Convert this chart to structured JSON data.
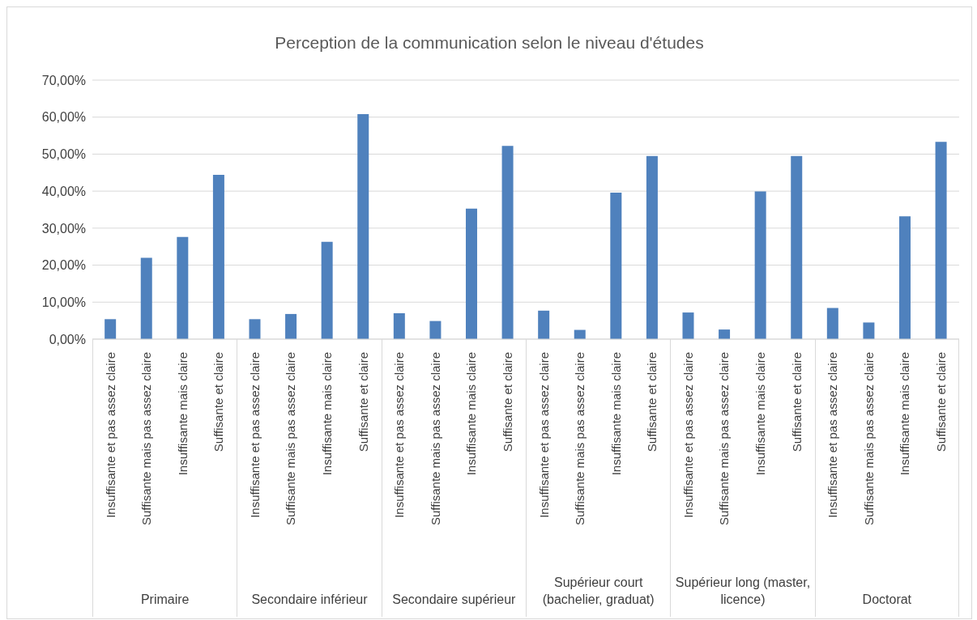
{
  "chart_data": {
    "type": "bar",
    "title": "Perception de la communication selon le niveau d'études",
    "categories": [
      "Insuffisante et pas assez claire",
      "Suffisante mais pas assez claire",
      "Insuffisante mais claire",
      "Suffisante et claire",
      "Insuffisante et pas assez claire",
      "Suffisante mais pas assez claire",
      "Insuffisante mais claire",
      "Suffisante et claire",
      "Insuffisante et pas assez claire",
      "Suffisante mais pas assez claire",
      "Insuffisante mais claire",
      "Suffisante et claire",
      "Insuffisante et pas assez claire",
      "Suffisante mais pas assez claire",
      "Insuffisante mais claire",
      "Suffisante et claire",
      "Insuffisante et pas assez claire",
      "Suffisante mais pas assez claire",
      "Insuffisante mais claire",
      "Suffisante et claire",
      "Insuffisante et pas assez claire",
      "Suffisante mais pas assez claire",
      "Insuffisante mais claire",
      "Suffisante et claire"
    ],
    "values": [
      5.4,
      22.0,
      27.6,
      44.4,
      5.4,
      6.8,
      26.3,
      60.8,
      7.0,
      4.9,
      35.3,
      52.2,
      7.7,
      2.5,
      39.6,
      49.5,
      7.2,
      2.6,
      39.9,
      49.5,
      8.4,
      4.5,
      33.2,
      53.3
    ],
    "color": "#4f81bd",
    "ylim": [
      0,
      70
    ],
    "yticks": [
      {
        "value": 0,
        "label": "0,00%"
      },
      {
        "value": 10,
        "label": "10,00%"
      },
      {
        "value": 20,
        "label": "20,00%"
      },
      {
        "value": 30,
        "label": "30,00%"
      },
      {
        "value": 40,
        "label": "40,00%"
      },
      {
        "value": 50,
        "label": "50,00%"
      },
      {
        "value": 60,
        "label": "60,00%"
      },
      {
        "value": 70,
        "label": "70,00%"
      }
    ],
    "grid": "y",
    "annotations": [
      "Primaire",
      "Secondaire inférieur",
      "Secondaire supérieur",
      "Supérieur court (bachelier, graduat)",
      "Supérieur long (master, licence)",
      "Doctorat"
    ]
  }
}
